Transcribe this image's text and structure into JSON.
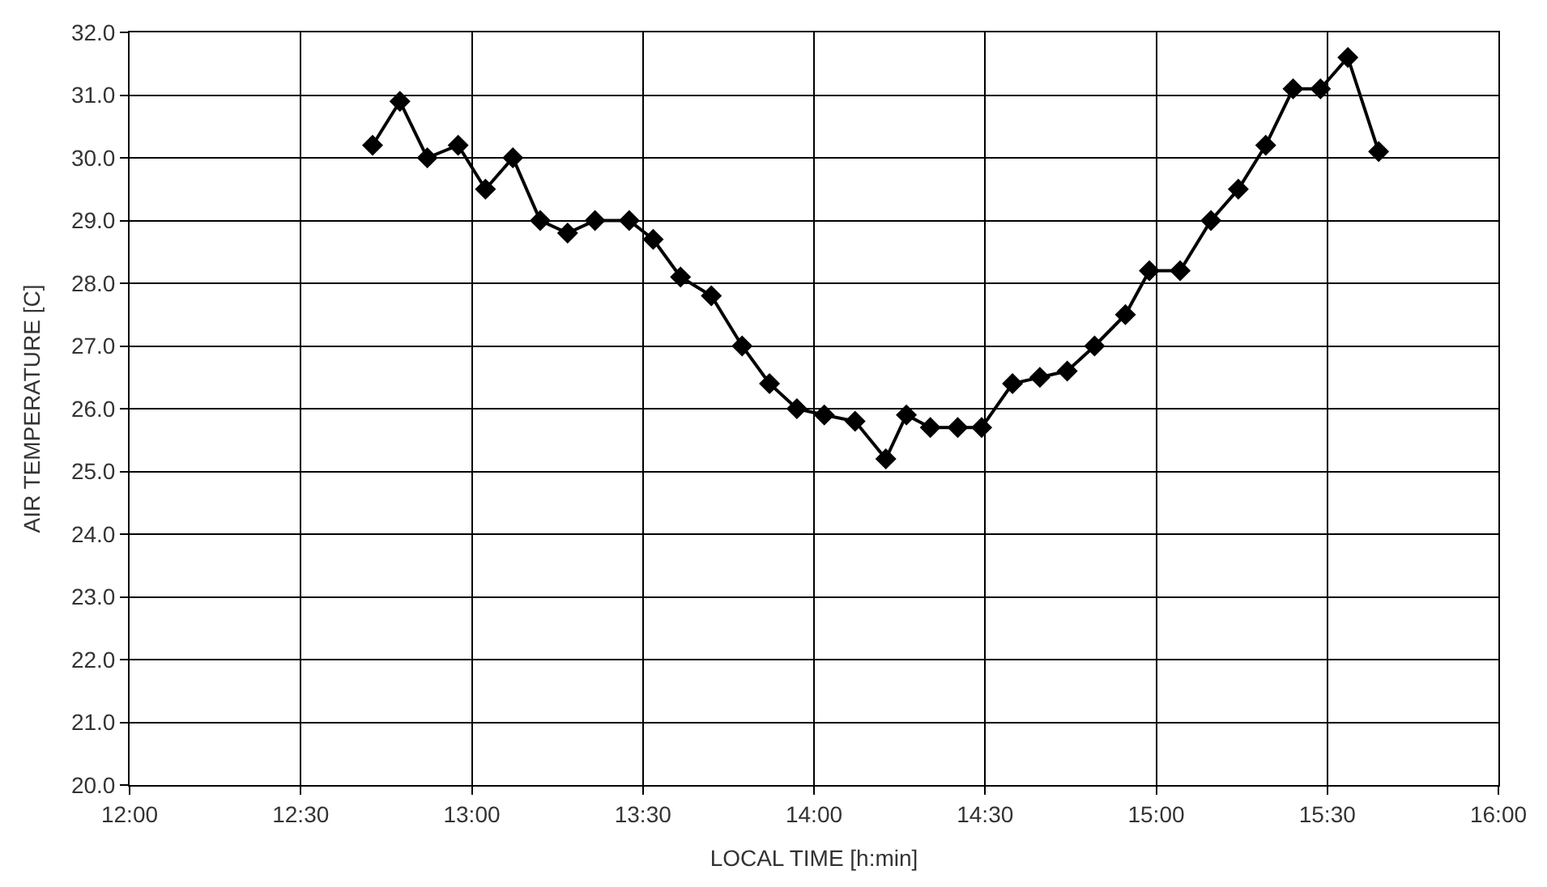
{
  "chart_data": {
    "type": "line",
    "xlabel": "LOCAL TIME [h:min]",
    "ylabel": "AIR TEMPERATURE [C]",
    "x": [
      12.71,
      12.79,
      12.87,
      12.96,
      13.04,
      13.12,
      13.2,
      13.28,
      13.36,
      13.46,
      13.53,
      13.61,
      13.7,
      13.79,
      13.87,
      13.95,
      14.03,
      14.12,
      14.21,
      14.27,
      14.34,
      14.42,
      14.49,
      14.58,
      14.66,
      14.74,
      14.82,
      14.91,
      14.98,
      15.07,
      15.16,
      15.24,
      15.32,
      15.4,
      15.48,
      15.56,
      15.65
    ],
    "series": [
      {
        "color": "#000000",
        "values": [
          30.2,
          30.9,
          30.0,
          30.2,
          29.5,
          30.0,
          29.0,
          28.8,
          29.0,
          29.0,
          28.7,
          28.1,
          27.8,
          27.0,
          26.4,
          26.0,
          25.9,
          25.8,
          25.2,
          25.9,
          25.7,
          25.7,
          25.7,
          26.4,
          26.5,
          26.6,
          27.0,
          27.5,
          28.2,
          28.2,
          29.0,
          29.5,
          30.2,
          31.1,
          31.1,
          31.6,
          30.1
        ]
      }
    ],
    "xlim": [
      12,
      16
    ],
    "xticks": [
      {
        "value": 12,
        "label": "12:00"
      },
      {
        "value": 12.5,
        "label": "12:30"
      },
      {
        "value": 13,
        "label": "13:00"
      },
      {
        "value": 13.5,
        "label": "13:30"
      },
      {
        "value": 14,
        "label": "14:00"
      },
      {
        "value": 14.5,
        "label": "14:30"
      },
      {
        "value": 15,
        "label": "15:00"
      },
      {
        "value": 15.5,
        "label": "15:30"
      },
      {
        "value": 16,
        "label": "16:00"
      }
    ],
    "ylim": [
      20,
      32
    ],
    "yticks": [
      {
        "value": 20,
        "label": "20.0"
      },
      {
        "value": 21,
        "label": "21.0"
      },
      {
        "value": 22,
        "label": "22.0"
      },
      {
        "value": 23,
        "label": "23.0"
      },
      {
        "value": 24,
        "label": "24.0"
      },
      {
        "value": 25,
        "label": "25.0"
      },
      {
        "value": 26,
        "label": "26.0"
      },
      {
        "value": 27,
        "label": "27.0"
      },
      {
        "value": 28,
        "label": "28.0"
      },
      {
        "value": 29,
        "label": "29.0"
      },
      {
        "value": 30,
        "label": "30.0"
      },
      {
        "value": 31,
        "label": "31.0"
      },
      {
        "value": 32,
        "label": "32.0"
      }
    ],
    "grid": true,
    "marker": "diamond",
    "line_style": "solid"
  }
}
